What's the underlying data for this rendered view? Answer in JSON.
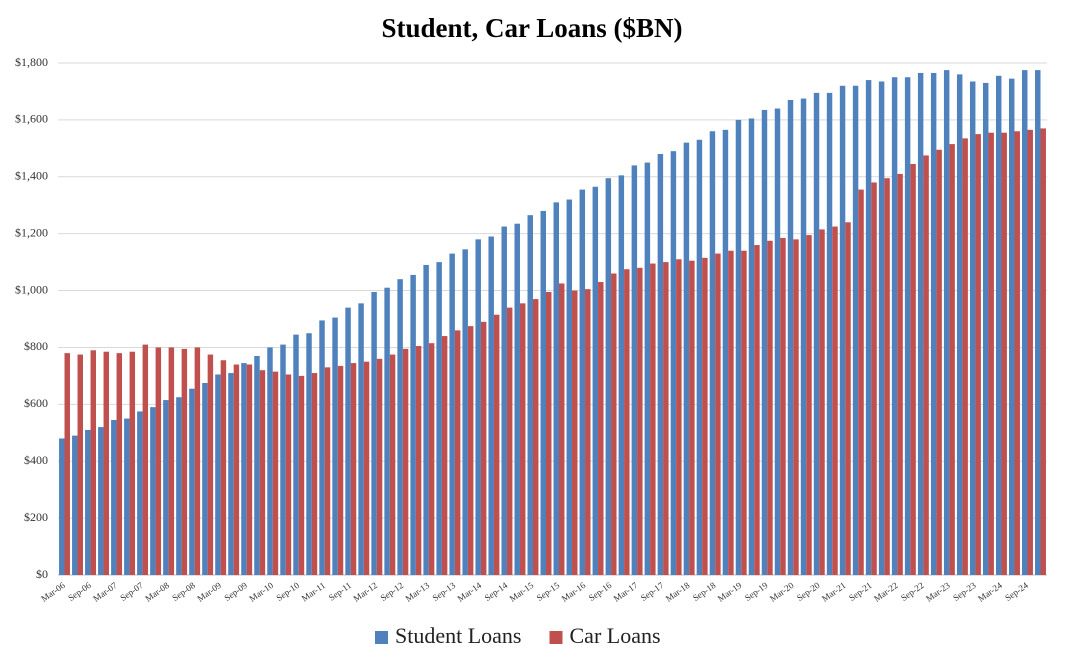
{
  "chart_data": {
    "type": "bar",
    "title": "Student, Car Loans ($BN)",
    "categories": [
      "Mar-06",
      null,
      "Sep-06",
      null,
      "Mar-07",
      null,
      "Sep-07",
      null,
      "Mar-08",
      null,
      "Sep-08",
      null,
      "Mar-09",
      null,
      "Sep-09",
      null,
      "Mar-10",
      null,
      "Sep-10",
      null,
      "Mar-11",
      null,
      "Sep-11",
      null,
      "Mar-12",
      null,
      "Sep-12",
      null,
      "Mar-13",
      null,
      "Sep-13",
      null,
      "Mar-14",
      null,
      "Sep-14",
      null,
      "Mar-15",
      null,
      "Sep-15",
      null,
      "Mar-16",
      null,
      "Sep-16",
      null,
      "Mar-17",
      null,
      "Sep-17",
      null,
      "Mar-18",
      null,
      "Sep-18",
      null,
      "Mar-19",
      null,
      "Sep-19",
      null,
      "Mar-20",
      null,
      "Sep-20",
      null,
      "Mar-21",
      null,
      "Sep-21",
      null,
      "Mar-22",
      null,
      "Sep-22",
      null,
      "Mar-23",
      null,
      "Sep-23",
      null,
      "Mar-24",
      null,
      "Sep-24",
      null
    ],
    "series": [
      {
        "name": "Student Loans",
        "color": "#4f81bd",
        "values": [
          480,
          490,
          510,
          520,
          545,
          550,
          575,
          590,
          615,
          625,
          655,
          675,
          705,
          710,
          745,
          770,
          800,
          810,
          845,
          850,
          895,
          905,
          940,
          955,
          995,
          1010,
          1040,
          1055,
          1090,
          1100,
          1130,
          1145,
          1180,
          1190,
          1225,
          1235,
          1265,
          1280,
          1310,
          1320,
          1355,
          1365,
          1395,
          1405,
          1440,
          1450,
          1480,
          1490,
          1520,
          1530,
          1560,
          1565,
          1600,
          1605,
          1635,
          1640,
          1670,
          1675,
          1695,
          1695,
          1720,
          1720,
          1740,
          1735,
          1750,
          1750,
          1765,
          1765,
          1775,
          1760,
          1735,
          1730,
          1755,
          1745,
          1775,
          1775
        ]
      },
      {
        "name": "Car Loans",
        "color": "#c0504d",
        "values": [
          780,
          775,
          790,
          785,
          780,
          785,
          810,
          800,
          800,
          795,
          800,
          775,
          755,
          740,
          740,
          720,
          715,
          705,
          700,
          710,
          730,
          735,
          745,
          750,
          760,
          775,
          795,
          805,
          815,
          840,
          860,
          875,
          890,
          915,
          940,
          955,
          970,
          995,
          1025,
          1000,
          1005,
          1030,
          1060,
          1075,
          1080,
          1095,
          1100,
          1110,
          1105,
          1115,
          1130,
          1140,
          1140,
          1160,
          1175,
          1185,
          1180,
          1195,
          1215,
          1225,
          1240,
          1355,
          1380,
          1395,
          1410,
          1445,
          1475,
          1495,
          1515,
          1535,
          1550,
          1555,
          1555,
          1560,
          1565,
          1570
        ]
      }
    ],
    "ylim": [
      0,
      1800
    ],
    "yticks": [
      {
        "value": 0,
        "label": "$0"
      },
      {
        "value": 200,
        "label": "$200"
      },
      {
        "value": 400,
        "label": "$400"
      },
      {
        "value": 600,
        "label": "$600"
      },
      {
        "value": 800,
        "label": "$800"
      },
      {
        "value": 1000,
        "label": "$1,000"
      },
      {
        "value": 1200,
        "label": "$1,200"
      },
      {
        "value": 1400,
        "label": "$1,400"
      },
      {
        "value": 1600,
        "label": "$1,600"
      },
      {
        "value": 1800,
        "label": "$1,800"
      }
    ],
    "grid": true,
    "legend": "bottom"
  }
}
